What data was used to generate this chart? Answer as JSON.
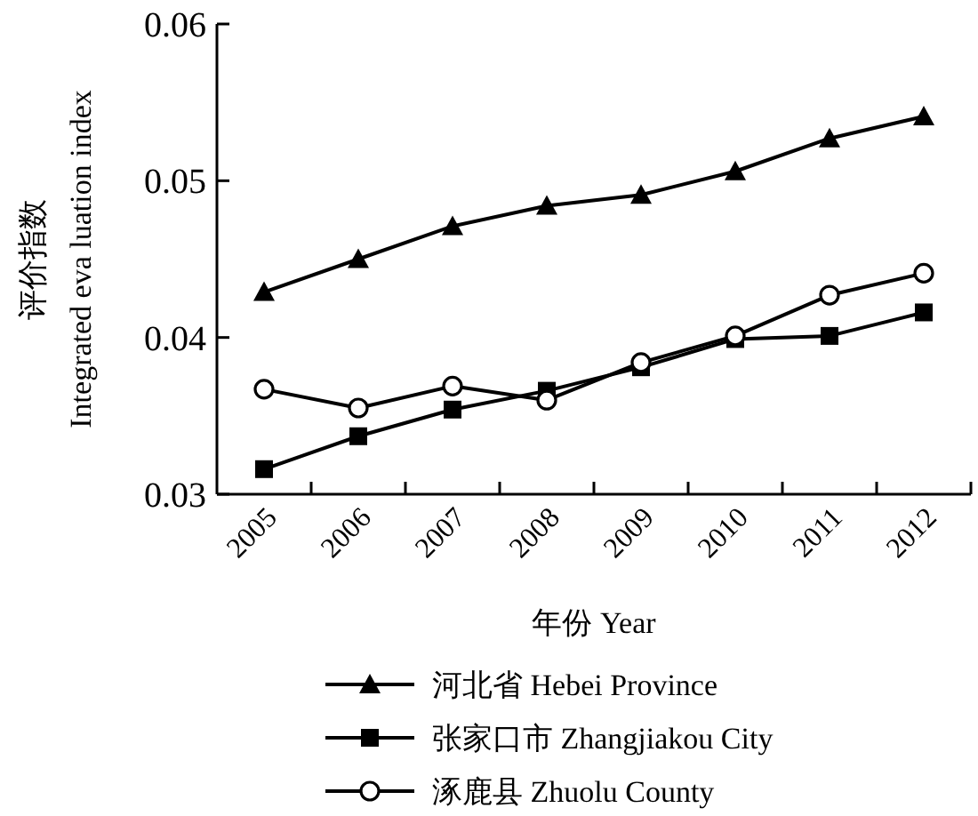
{
  "chart_data": {
    "type": "line",
    "xlabel": "年份 Year",
    "ylabel": "评价指数\nIntegrated eva luation index",
    "categories": [
      "2005",
      "2006",
      "2007",
      "2008",
      "2009",
      "2010",
      "2011",
      "2012"
    ],
    "ylim": [
      0.03,
      0.06
    ],
    "yticks": [
      0.03,
      0.04,
      0.05,
      0.06
    ],
    "grid": false,
    "legend": "bottom",
    "line_style": "solid",
    "series": [
      {
        "name": "河北省 Hebei Province",
        "color": "#000000",
        "marker": "triangle",
        "values": [
          0.0429,
          0.045,
          0.0471,
          0.0484,
          0.0491,
          0.0506,
          0.0527,
          0.0541
        ]
      },
      {
        "name": "张家口市 Zhangjiakou City",
        "color": "#000000",
        "marker": "square",
        "values": [
          0.0316,
          0.0337,
          0.0354,
          0.0366,
          0.0381,
          0.0399,
          0.0401,
          0.0416
        ]
      },
      {
        "name": "涿鹿县 Zhuolu County",
        "color": "#000000",
        "marker": "circle",
        "values": [
          0.0367,
          0.0355,
          0.0369,
          0.036,
          0.0384,
          0.0401,
          0.0427,
          0.0441
        ]
      }
    ]
  }
}
